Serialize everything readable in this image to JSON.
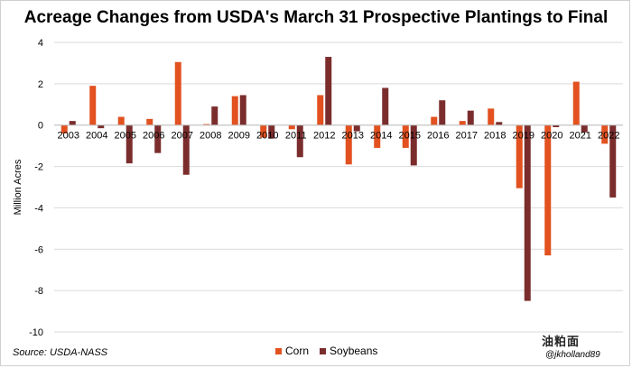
{
  "chart_data": {
    "type": "bar",
    "title": "Acreage Changes from USDA's March 31 Prospective Plantings to Final",
    "xlabel": "",
    "ylabel": "Million Acres",
    "ylim": [
      -10,
      4
    ],
    "yticks": [
      4,
      2,
      0,
      -2,
      -4,
      -6,
      -8,
      -10
    ],
    "grid": true,
    "legend_position": "bottom",
    "categories": [
      "2003",
      "2004",
      "2005",
      "2006",
      "2007",
      "2008",
      "2009",
      "2010",
      "2011",
      "2012",
      "2013",
      "2014",
      "2015",
      "2016",
      "2017",
      "2018",
      "2019",
      "2020",
      "2021",
      "2022"
    ],
    "series": [
      {
        "name": "Corn",
        "color": "#e2511f",
        "values": [
          -0.4,
          1.9,
          0.4,
          0.3,
          3.05,
          0.05,
          1.4,
          -0.6,
          -0.2,
          1.45,
          -1.9,
          -1.1,
          -1.1,
          0.4,
          0.2,
          0.8,
          -3.05,
          -6.3,
          2.1,
          -0.9
        ]
      },
      {
        "name": "Soybeans",
        "color": "#7b2d2d",
        "values": [
          0.2,
          -0.15,
          -1.85,
          -1.35,
          -2.4,
          0.9,
          1.45,
          -0.65,
          -1.55,
          3.3,
          -0.3,
          1.8,
          -1.95,
          1.2,
          0.7,
          0.15,
          -8.5,
          -0.1,
          -0.35,
          -3.5
        ]
      }
    ]
  },
  "source": "Source: USDA-NASS",
  "watermark": "油粕面",
  "handle": "@jkholland89"
}
